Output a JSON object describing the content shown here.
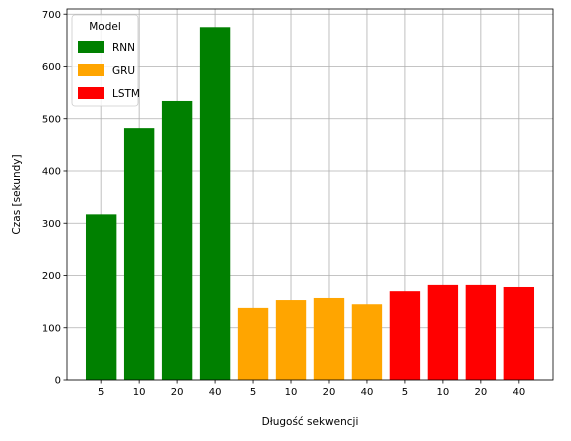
{
  "chart_data": {
    "type": "bar",
    "title": "",
    "xlabel": "Długość sekwencji",
    "ylabel": "Czas [sekundy]",
    "ylim": [
      0,
      710
    ],
    "yticks": [
      0,
      100,
      200,
      300,
      400,
      500,
      600,
      700
    ],
    "grid": true,
    "legend": {
      "title": "Model",
      "placement": "top-left",
      "entries": [
        {
          "name": "RNN",
          "color": "#008000"
        },
        {
          "name": "GRU",
          "color": "#FFA500"
        },
        {
          "name": "LSTM",
          "color": "#FF0000"
        }
      ]
    },
    "bars": [
      {
        "label": "5",
        "model": "RNN",
        "value": 317
      },
      {
        "label": "10",
        "model": "RNN",
        "value": 482
      },
      {
        "label": "20",
        "model": "RNN",
        "value": 534
      },
      {
        "label": "40",
        "model": "RNN",
        "value": 675
      },
      {
        "label": "5",
        "model": "GRU",
        "value": 138
      },
      {
        "label": "10",
        "model": "GRU",
        "value": 153
      },
      {
        "label": "20",
        "model": "GRU",
        "value": 157
      },
      {
        "label": "40",
        "model": "GRU",
        "value": 145
      },
      {
        "label": "5",
        "model": "LSTM",
        "value": 170
      },
      {
        "label": "10",
        "model": "LSTM",
        "value": 182
      },
      {
        "label": "20",
        "model": "LSTM",
        "value": 182
      },
      {
        "label": "40",
        "model": "LSTM",
        "value": 178
      }
    ]
  }
}
